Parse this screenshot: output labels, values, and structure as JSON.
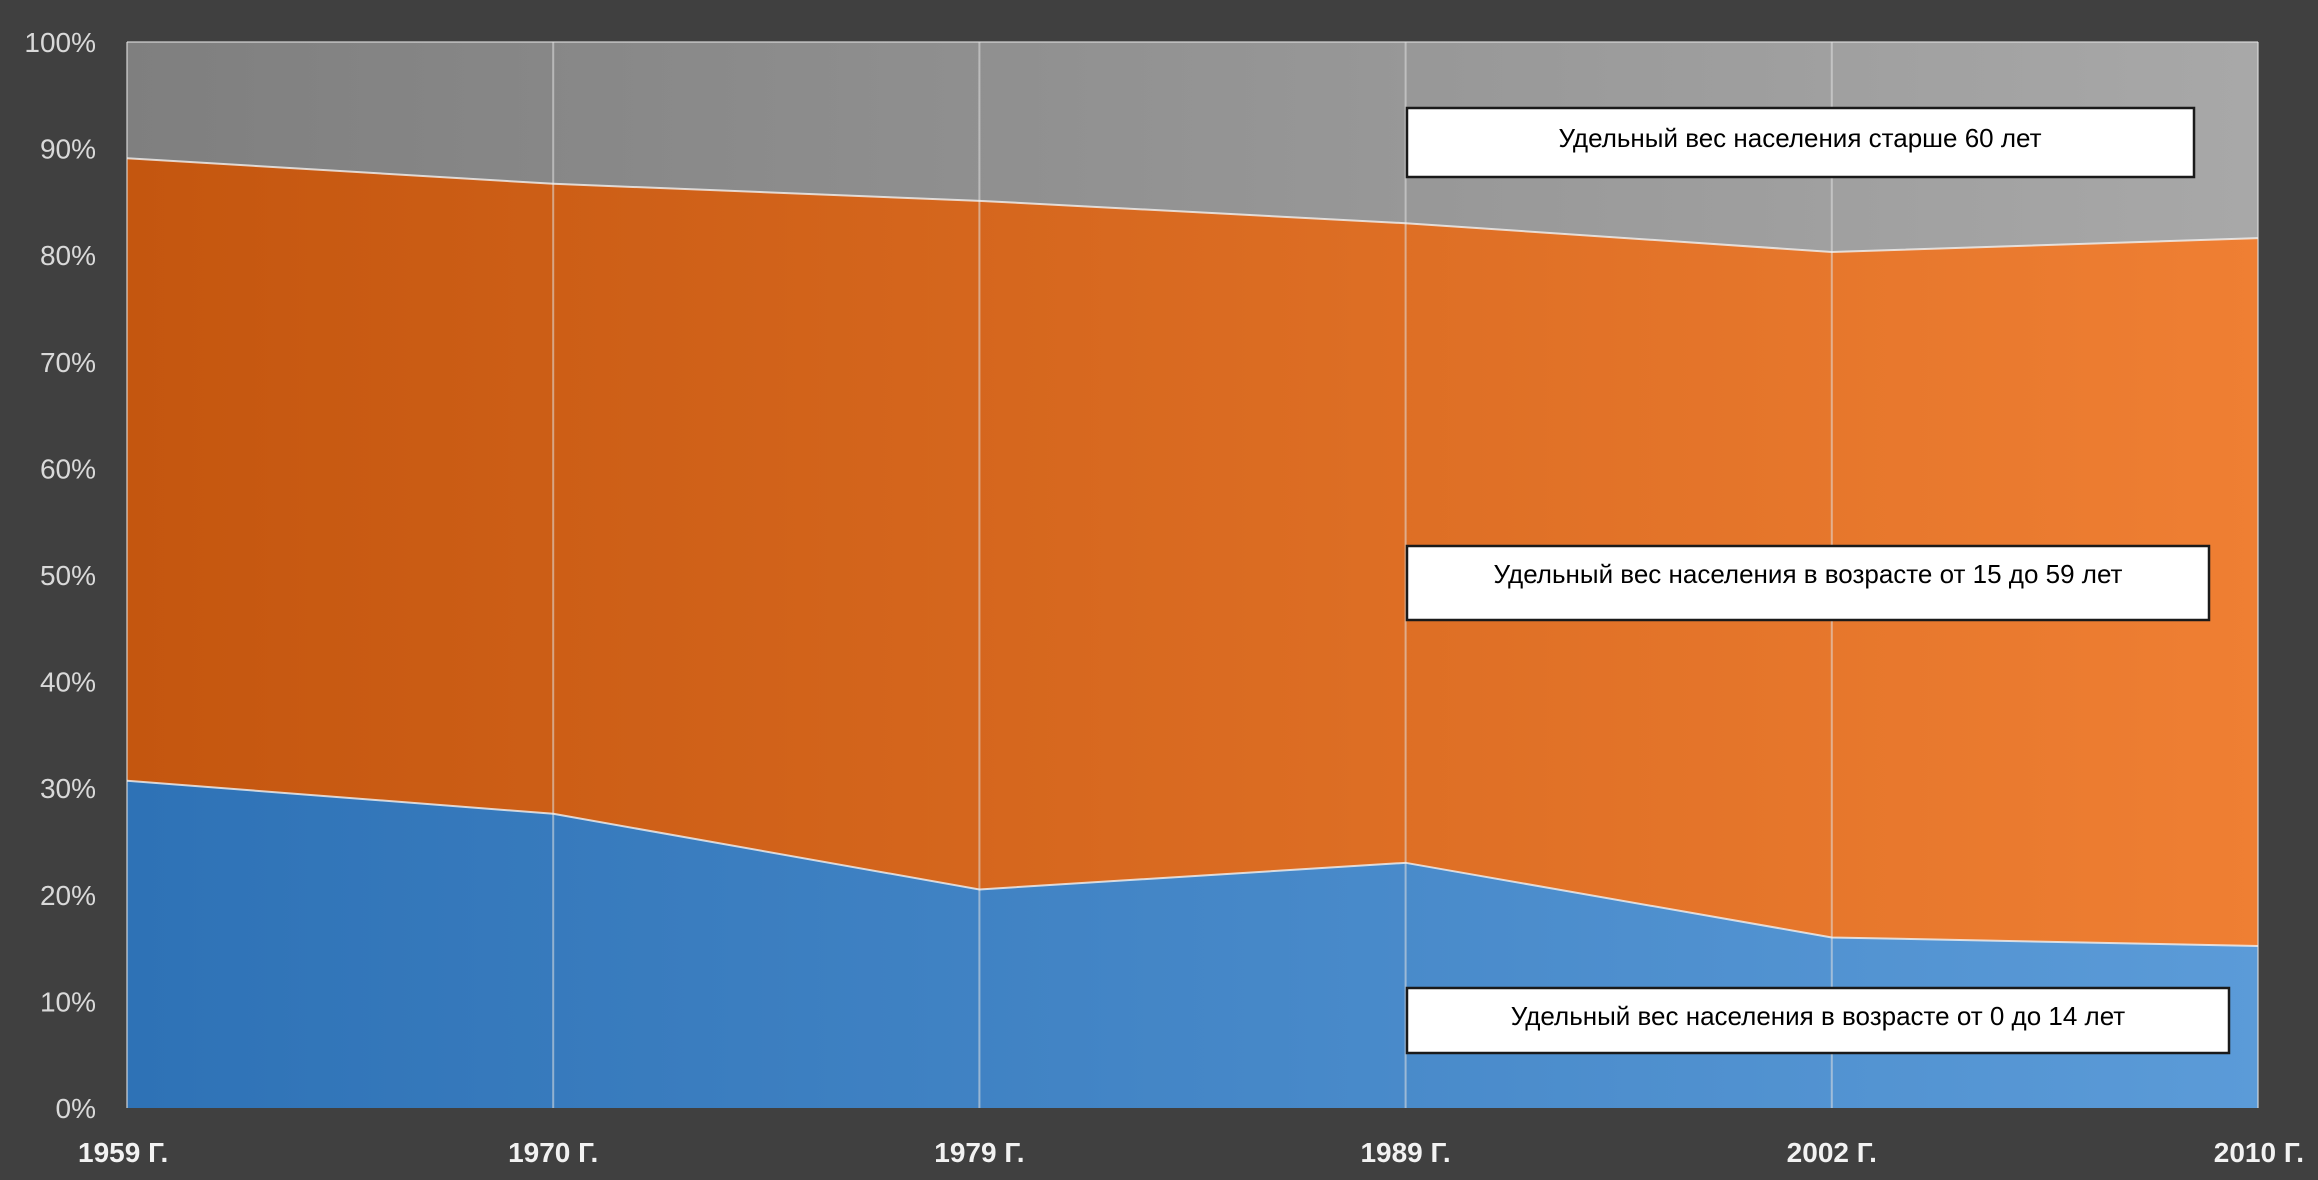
{
  "chart_data": {
    "type": "area",
    "stacked": "percent",
    "categories": [
      "1959 Г.",
      "1970 Г.",
      "1979 Г.",
      "1989 Г.",
      "2002 Г.",
      "2010 Г."
    ],
    "series": [
      {
        "key": "young",
        "values": [
          30.7,
          27.6,
          20.5,
          23.0,
          16.0,
          15.2
        ],
        "color": "#3a7fc1"
      },
      {
        "key": "working",
        "values": [
          58.4,
          59.1,
          64.6,
          60.0,
          64.3,
          66.4
        ],
        "color": "#dd6a22"
      },
      {
        "key": "elderly",
        "values": [
          10.9,
          13.3,
          14.9,
          17.0,
          19.7,
          18.4
        ],
        "color": "#8c8c8c"
      }
    ],
    "ylim": [
      0,
      100
    ],
    "yticks": [
      "0%",
      "10%",
      "20%",
      "30%",
      "40%",
      "50%",
      "60%",
      "70%",
      "80%",
      "90%",
      "100%"
    ],
    "grid": "vertical",
    "annotations": {
      "elderly": "Удельный вес населения старше 60 лет",
      "working": "Удельный вес  населения в возрасте от 15 до 59 лет",
      "young": "Удельный вес населения в возрасте от 0 до 14 лет"
    }
  }
}
